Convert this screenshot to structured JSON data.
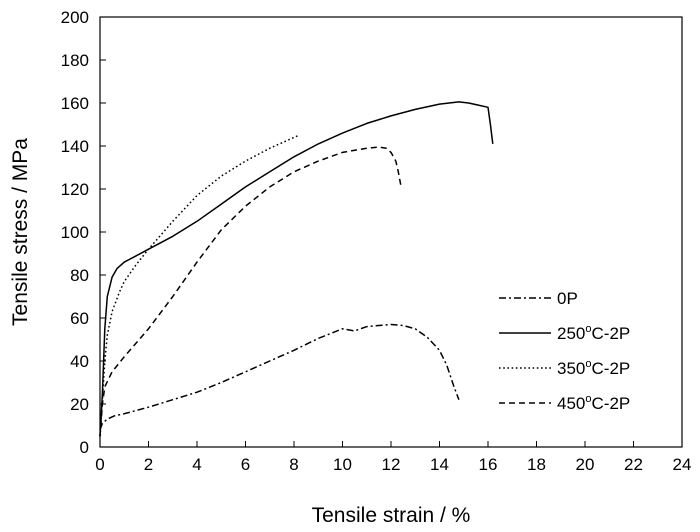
{
  "chart_data": {
    "type": "line",
    "xlabel": "Tensile strain / %",
    "ylabel": "Tensile stress / MPa",
    "xlim": [
      0,
      24
    ],
    "ylim": [
      0,
      200
    ],
    "xticks": [
      0,
      2,
      4,
      6,
      8,
      10,
      12,
      14,
      16,
      18,
      20,
      22,
      24
    ],
    "yticks": [
      0,
      20,
      40,
      60,
      80,
      100,
      120,
      140,
      160,
      180,
      200
    ],
    "grid": false,
    "legend_position": "right",
    "series": [
      {
        "name": "0P",
        "name_parts": {
          "main": "0P",
          "sup": "",
          "post": ""
        },
        "dash": "dashdot",
        "x": [
          0,
          0.1,
          0.3,
          0.6,
          1,
          2,
          3,
          4,
          5,
          6,
          7,
          8,
          9,
          10,
          10.5,
          11,
          11.5,
          12,
          12.5,
          13,
          13.5,
          14,
          14.3,
          14.6,
          14.8
        ],
        "y": [
          8,
          11,
          13,
          14.5,
          15.5,
          18.5,
          22,
          25.5,
          30,
          35,
          40,
          45,
          50.5,
          55,
          54,
          56,
          56.5,
          57,
          56.5,
          55,
          51,
          45,
          38,
          28,
          22
        ]
      },
      {
        "name": "250°C-2P",
        "name_parts": {
          "main": "250",
          "sup": "o",
          "post": "C-2P"
        },
        "dash": "solid",
        "x": [
          0,
          0.1,
          0.2,
          0.3,
          0.5,
          0.7,
          1,
          1.5,
          2,
          3,
          4,
          5,
          6,
          7,
          8,
          9,
          10,
          11,
          12,
          13,
          14,
          14.8,
          15.2,
          15.6,
          16,
          16.1,
          16.2
        ],
        "y": [
          5,
          25,
          55,
          70,
          79,
          83,
          86,
          89,
          92,
          98,
          105,
          113,
          121,
          128,
          135,
          141,
          146,
          150.5,
          154,
          157,
          159.5,
          160.5,
          160,
          159,
          158,
          150,
          141
        ]
      },
      {
        "name": "350°C-2P",
        "name_parts": {
          "main": "350",
          "sup": "o",
          "post": "C-2P"
        },
        "dash": "dotted",
        "x": [
          0,
          0.1,
          0.2,
          0.3,
          0.5,
          0.8,
          1,
          1.5,
          2,
          3,
          4,
          5,
          6,
          7,
          7.5,
          8,
          8.2
        ],
        "y": [
          5,
          22,
          40,
          52,
          63,
          72,
          77,
          85,
          92,
          105,
          117,
          126,
          133,
          139,
          141.5,
          144,
          145
        ]
      },
      {
        "name": "450°C-2P",
        "name_parts": {
          "main": "450",
          "sup": "o",
          "post": "C-2P"
        },
        "dash": "dashed",
        "x": [
          0,
          0.1,
          0.2,
          0.5,
          1,
          2,
          3,
          4,
          5,
          6,
          7,
          8,
          9,
          10,
          11,
          11.5,
          11.8,
          12,
          12.2,
          12.3,
          12.4
        ],
        "y": [
          5,
          20,
          28,
          35,
          42,
          55,
          70,
          86,
          101,
          112,
          121,
          128,
          133,
          137,
          139,
          139.5,
          139,
          137,
          133,
          128,
          122
        ]
      }
    ]
  }
}
